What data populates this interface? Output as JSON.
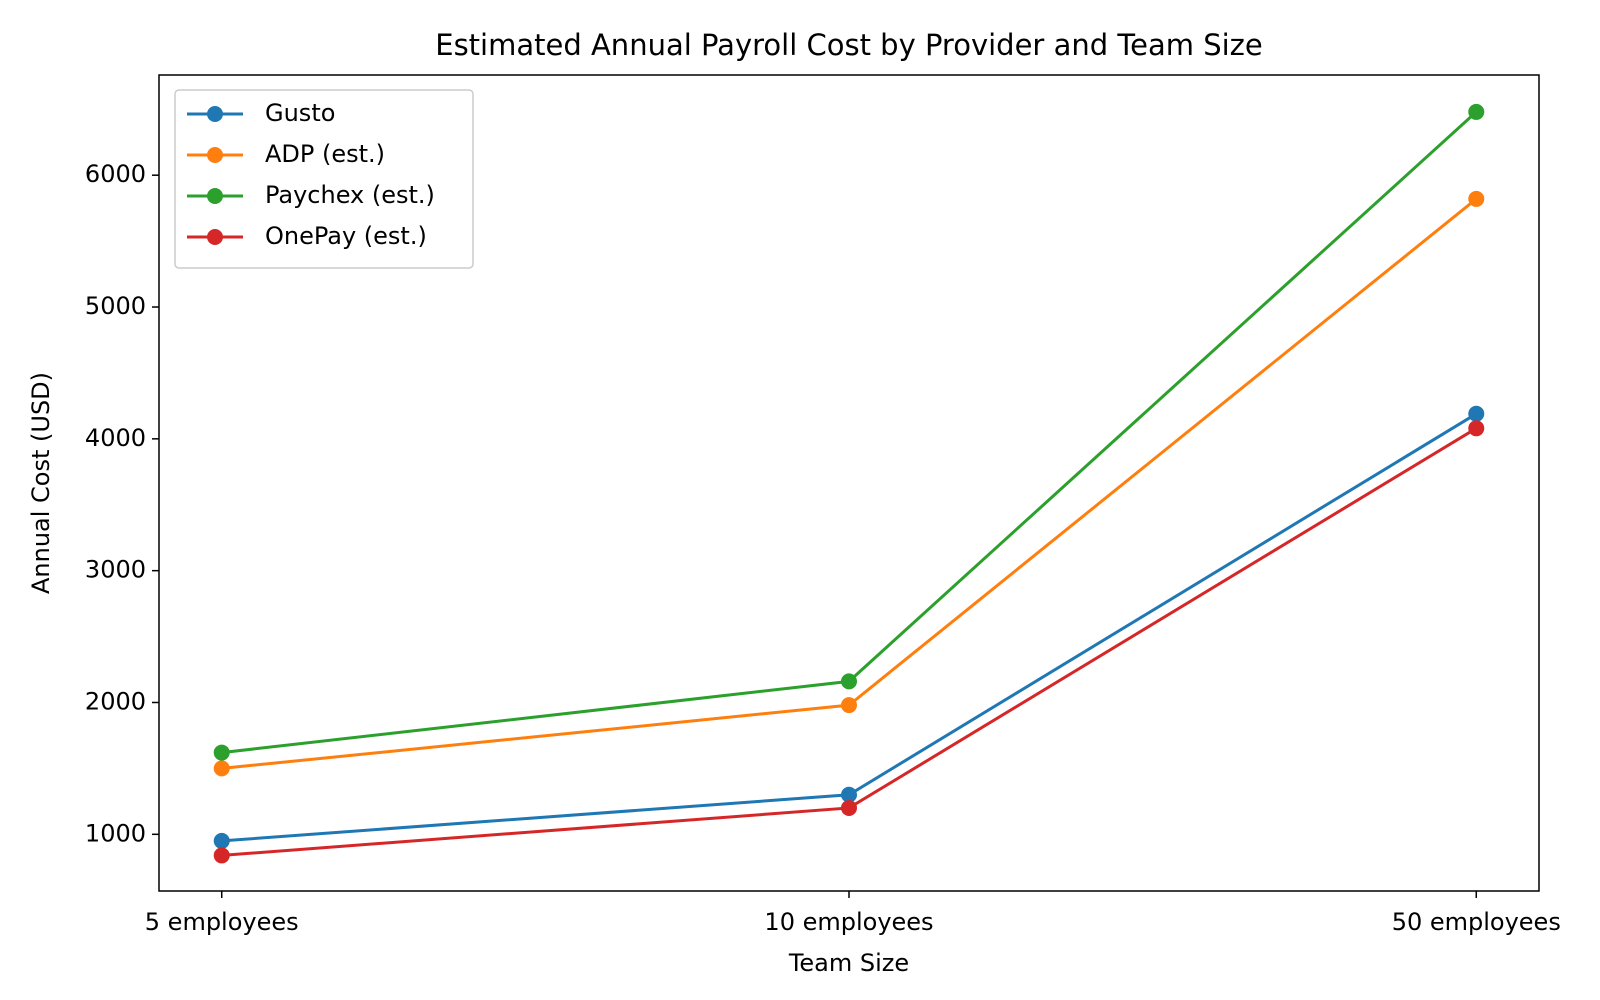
{
  "chart_data": {
    "type": "line",
    "title": "Estimated Annual Payroll Cost by Provider and Team Size",
    "x_label": "Team Size",
    "y_label": "Annual Cost (USD)",
    "categories": [
      "5 employees",
      "10 employees",
      "50 employees"
    ],
    "series": [
      {
        "name": "Gusto",
        "color": "#1f77b4",
        "values": [
          950,
          1300,
          4190
        ]
      },
      {
        "name": "ADP (est.)",
        "color": "#ff7f0e",
        "values": [
          1500,
          1980,
          5820
        ]
      },
      {
        "name": "Paychex (est.)",
        "color": "#2ca02c",
        "values": [
          1620,
          2160,
          6480
        ]
      },
      {
        "name": "OnePay (est.)",
        "color": "#d62728",
        "values": [
          840,
          1200,
          4080
        ]
      }
    ],
    "ylim": [
      570,
      6760
    ],
    "yticks": [
      1000,
      2000,
      3000,
      4000,
      5000,
      6000
    ],
    "grid": false,
    "legend": "upper left"
  }
}
